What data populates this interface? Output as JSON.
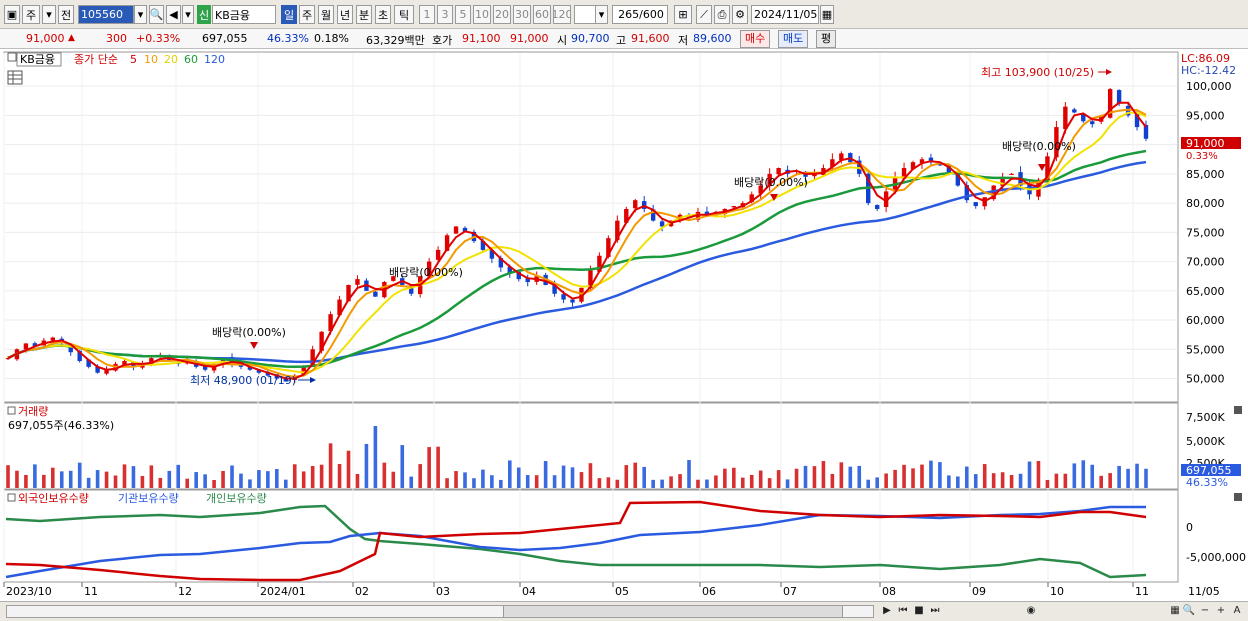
{
  "toolbar": {
    "jong": "주",
    "jeon": "전",
    "code": "105560",
    "shin": "신",
    "name": "KB금융",
    "periods": [
      "일",
      "주",
      "월",
      "년",
      "분",
      "초",
      "틱"
    ],
    "active_period": "일",
    "minutes": [
      "1",
      "3",
      "5",
      "10",
      "20",
      "30",
      "60",
      "120"
    ],
    "count": "265",
    "count_total": "/600",
    "date": "2024/11/05"
  },
  "quote": {
    "price": "91,000",
    "arrow": "▲",
    "change": "300",
    "change_pct": "+0.33%",
    "volume": "697,055",
    "volume_ratio": "46.33%",
    "turnover_pct": "0.18%",
    "amount": "63,329백만",
    "hoga_label": "호가",
    "ask": "91,100",
    "bid": "91,000",
    "open_label": "시",
    "open": "90,700",
    "high_label": "고",
    "high": "91,600",
    "low_label": "저",
    "low": "89,600",
    "buy": "매수",
    "sell": "매도",
    "eval": "평"
  },
  "price_panel": {
    "title": "KB금융",
    "ma_label": "종가 단순",
    "ma_periods": [
      "5",
      "10",
      "20",
      "60",
      "120"
    ],
    "ma_colors": [
      "#e00000",
      "#f29a00",
      "#f2e200",
      "#1a9a3a",
      "#2a5ae0"
    ],
    "lc": "LC:86.09",
    "hc": "HC:-12.42",
    "last_price": "91,000",
    "last_pct": "0.33%",
    "y_ticks": [
      "100,000",
      "95,000",
      "90,000",
      "85,000",
      "80,000",
      "75,000",
      "70,000",
      "65,000",
      "60,000",
      "55,000",
      "50,000"
    ],
    "annotations": {
      "high": "최고 103,900 (10/25)",
      "low": "최저 48,900 (01/19)",
      "div1": "배당락(0.00%)",
      "div2": "배당락(0.00%)",
      "div3": "배당락(0.00%)",
      "div4": "배당락(0.00%)"
    }
  },
  "volume_panel": {
    "title": "거래량",
    "info": "697,055주(46.33%)",
    "y_ticks": [
      "7,500K",
      "5,000K",
      "2,500K"
    ],
    "last": "697,055",
    "last_pct": "46.33%"
  },
  "holdings_panel": {
    "legend": [
      "외국인보유수량",
      "기관보유수량",
      "개인보유수량"
    ],
    "colors": [
      "#d00000",
      "#2a5ae0",
      "#2a8a4a"
    ],
    "y_ticks": [
      "0",
      "-5,000,000"
    ]
  },
  "x_axis": {
    "labels": [
      "2023/10",
      "11",
      "12",
      "2024/01",
      "02",
      "03",
      "04",
      "05",
      "06",
      "07",
      "08",
      "09",
      "10",
      "11"
    ],
    "right_label": "11/05"
  },
  "chart_data": {
    "type": "candlestick",
    "ylim": [
      46500,
      105500
    ],
    "ohlc_points_description": "daily candles 2023/10 - 2024/11",
    "close_series": [
      53500,
      55000,
      56000,
      55500,
      56500,
      57000,
      56000,
      54500,
      53000,
      52000,
      51000,
      51500,
      52500,
      53000,
      52000,
      52500,
      53500,
      54000,
      53000,
      52500,
      53000,
      52000,
      51500,
      52500,
      53500,
      52500,
      52000,
      51500,
      51000,
      50500,
      50000,
      49500,
      50500,
      52000,
      55000,
      58000,
      61000,
      63500,
      66000,
      67000,
      65000,
      64000,
      66500,
      67500,
      66000,
      64500,
      67500,
      70000,
      72000,
      74500,
      76000,
      75000,
      73500,
      72000,
      70500,
      69000,
      68000,
      67000,
      66500,
      67500,
      66000,
      64500,
      63500,
      63000,
      65500,
      68500,
      71000,
      74000,
      77000,
      79000,
      80500,
      79000,
      77000,
      76000,
      77000,
      78000,
      77500,
      78500,
      78000,
      78500,
      79000,
      79500,
      80000,
      81500,
      83000,
      85000,
      86000,
      85000,
      85500,
      84500,
      85000,
      86000,
      87500,
      88500,
      87000,
      85000,
      80000,
      79000,
      82000,
      84500,
      86000,
      87000,
      87500,
      87000,
      86500,
      85000,
      83000,
      80500,
      79500,
      81000,
      83000,
      84500,
      85000,
      83000,
      81500,
      84000,
      88000,
      93000,
      96500,
      95500,
      94000,
      93500,
      95000,
      99500,
      97000,
      95000,
      93000,
      91000
    ]
  }
}
